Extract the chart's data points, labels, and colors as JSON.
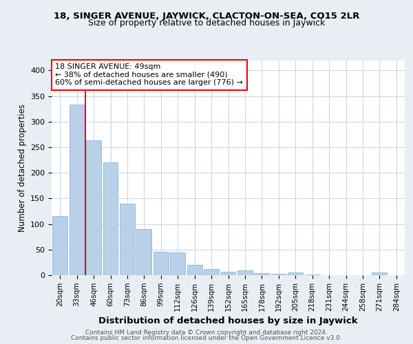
{
  "title1": "18, SINGER AVENUE, JAYWICK, CLACTON-ON-SEA, CO15 2LR",
  "title2": "Size of property relative to detached houses in Jaywick",
  "xlabel": "Distribution of detached houses by size in Jaywick",
  "ylabel": "Number of detached properties",
  "categories": [
    "20sqm",
    "33sqm",
    "46sqm",
    "60sqm",
    "73sqm",
    "86sqm",
    "99sqm",
    "112sqm",
    "126sqm",
    "139sqm",
    "152sqm",
    "165sqm",
    "178sqm",
    "192sqm",
    "205sqm",
    "218sqm",
    "231sqm",
    "244sqm",
    "258sqm",
    "271sqm",
    "284sqm"
  ],
  "values": [
    115,
    333,
    263,
    220,
    140,
    90,
    46,
    44,
    20,
    12,
    7,
    9,
    4,
    3,
    5,
    1,
    0,
    0,
    0,
    5,
    0
  ],
  "bar_color": "#b8d0e8",
  "bar_edge_color": "#90b4d0",
  "redline_label": "18 SINGER AVENUE: 49sqm",
  "annotation_line1": "← 38% of detached houses are smaller (490)",
  "annotation_line2": "60% of semi-detached houses are larger (776) →",
  "footer1": "Contains HM Land Registry data © Crown copyright and database right 2024.",
  "footer2": "Contains public sector information licensed under the Open Government Licence v3.0.",
  "ylim": [
    0,
    420
  ],
  "background_color": "#e8eef4",
  "plot_bg_color": "#ffffff",
  "grid_color": "#c8d8e8",
  "redline_x": 1.5,
  "title1_fontsize": 9.5,
  "title2_fontsize": 9,
  "ylabel_fontsize": 8.5,
  "xlabel_fontsize": 9.5,
  "tick_fontsize": 7.5,
  "annot_fontsize": 8
}
